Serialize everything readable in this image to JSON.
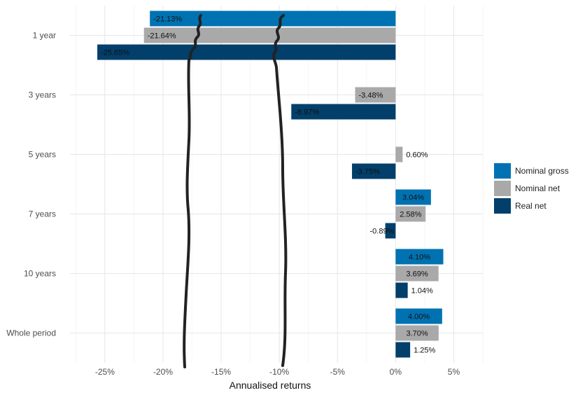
{
  "chart_data": {
    "type": "bar",
    "orientation": "horizontal",
    "xlabel": "Annualised returns",
    "xlim": [
      -28,
      7.5
    ],
    "x_ticks": [
      "-25%",
      "-20%",
      "-15%",
      "-10%",
      "-5%",
      "0%",
      "5%"
    ],
    "x_tick_values": [
      -25,
      -20,
      -15,
      -10,
      -5,
      0,
      5
    ],
    "grid": true,
    "legend_position": "right",
    "categories": [
      "1 year",
      "3 years",
      "5 years",
      "7 years",
      "10 years",
      "Whole period"
    ],
    "series": [
      {
        "name": "Nominal gross",
        "color": "#0072b2",
        "values": [
          -21.13,
          null,
          null,
          3.04,
          4.1,
          4.0
        ],
        "labels": [
          "-21.13%",
          "",
          "",
          "3.04%",
          "4.10%",
          "4.00%"
        ]
      },
      {
        "name": "Nominal net",
        "color": "#a9a9a9",
        "values": [
          -21.64,
          -3.48,
          0.6,
          2.58,
          3.69,
          3.7
        ],
        "labels": [
          "-21.64%",
          "-3.48%",
          "0.60%",
          "2.58%",
          "3.69%",
          "3.70%"
        ]
      },
      {
        "name": "Real net",
        "color": "#023f6b",
        "values": [
          -25.65,
          -8.97,
          -3.75,
          -0.89,
          1.04,
          1.25
        ],
        "labels": [
          "-25.65%",
          "-8.97%",
          "-3.75%",
          "-0.89%",
          "1.04%",
          "1.25%"
        ]
      }
    ],
    "annotations": {
      "hand_drawn_vertical_lines": [
        {
          "near_x": -18,
          "stroke": "#222222"
        },
        {
          "near_x": -10,
          "stroke": "#222222"
        }
      ]
    }
  }
}
